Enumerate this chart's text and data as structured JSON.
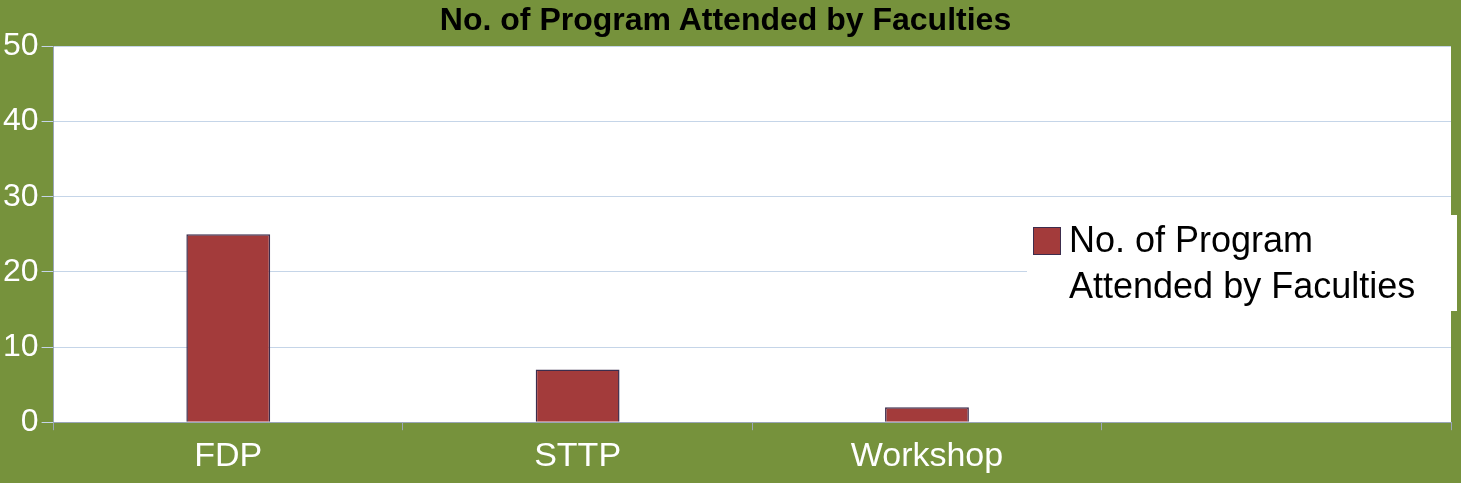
{
  "chart_data": {
    "type": "bar",
    "title": "No. of Program Attended by Faculties",
    "categories": [
      "FDP",
      "STTP",
      "Workshop",
      null
    ],
    "series": [
      {
        "name": "No. of Program Attended by Faculties",
        "color": "#a33b3b",
        "values": [
          25,
          7,
          2,
          null
        ]
      }
    ],
    "ylim": [
      0,
      50
    ],
    "yticks": [
      0,
      10,
      20,
      30,
      40,
      50
    ],
    "grid": "y",
    "legend": "right"
  }
}
